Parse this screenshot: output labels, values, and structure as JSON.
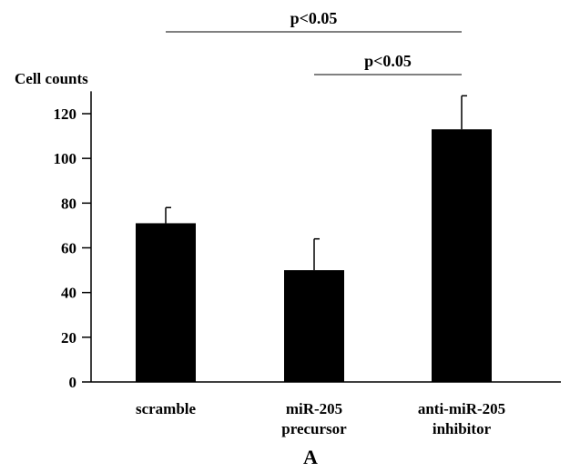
{
  "chart_data": {
    "type": "bar",
    "title": "",
    "xlabel": "",
    "ylabel": "Cell counts",
    "ylim": [
      0,
      130
    ],
    "yticks": [
      0,
      20,
      40,
      60,
      80,
      100,
      120
    ],
    "categories": [
      {
        "lines": [
          "scramble"
        ]
      },
      {
        "lines": [
          "miR-205",
          "precursor"
        ]
      },
      {
        "lines": [
          "anti-miR-205",
          "inhibitor"
        ]
      }
    ],
    "values": [
      71,
      50,
      113
    ],
    "errors": [
      7,
      14,
      15
    ],
    "bar_color": "#000000",
    "significance": [
      {
        "from": 0,
        "to": 2,
        "label": "p<0.05"
      },
      {
        "from": 1,
        "to": 2,
        "label": "p<0.05"
      }
    ],
    "panel_label": "A",
    "grid": false,
    "legend": "none"
  }
}
